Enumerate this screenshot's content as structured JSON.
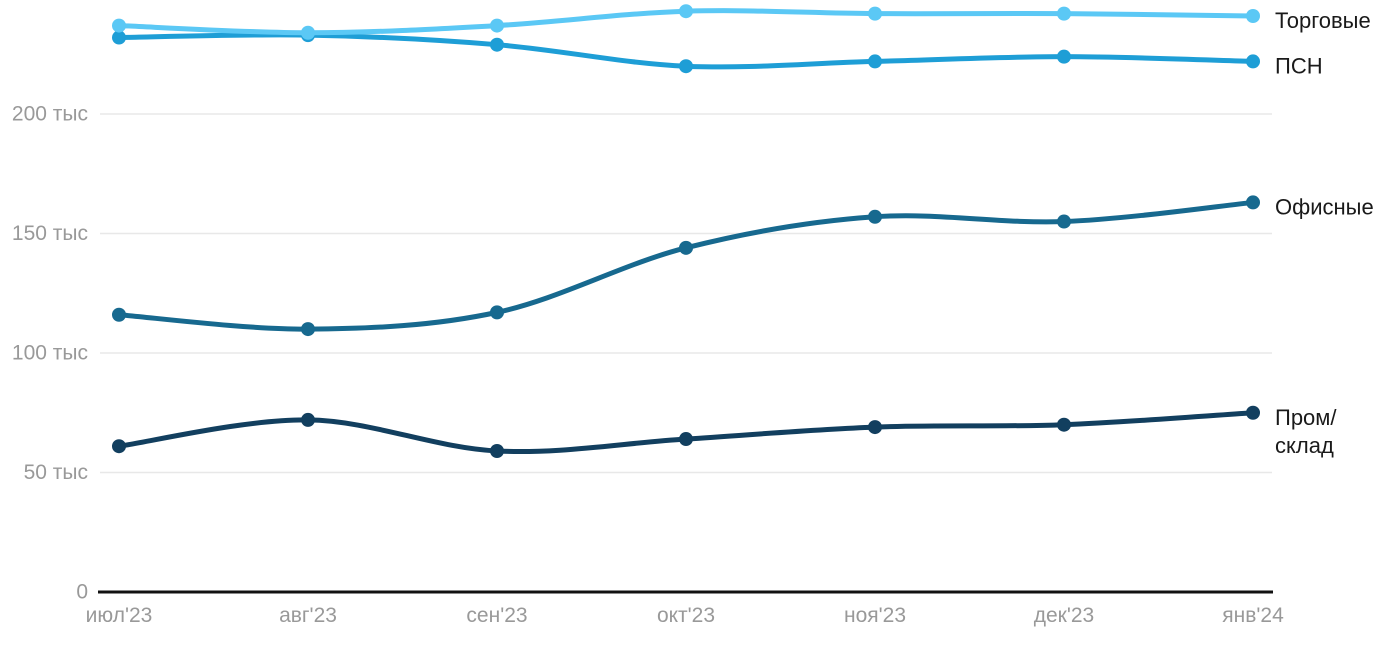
{
  "chart_data": {
    "type": "line",
    "title": "",
    "x_labels": [
      "июл'23",
      "авг'23",
      "сен'23",
      "окт'23",
      "ноя'23",
      "дек'23",
      "янв'24"
    ],
    "y_ticks": [
      {
        "value": 0,
        "label": "0"
      },
      {
        "value": 50,
        "label": "50 тыс"
      },
      {
        "value": 100,
        "label": "100 тыс"
      },
      {
        "value": 150,
        "label": "150 тыс"
      },
      {
        "value": 200,
        "label": "200 тыс"
      }
    ],
    "ylim": [
      0,
      248
    ],
    "grid": true,
    "legend_position": "right-of-line-end",
    "series": [
      {
        "key": "torgovye",
        "name": "Торговые",
        "color": "#5bc8f5",
        "values": [
          237,
          234,
          237,
          243,
          242,
          242,
          241
        ]
      },
      {
        "key": "psn",
        "name": "ПСН",
        "color": "#1e9ed6",
        "values": [
          232,
          233,
          229,
          220,
          222,
          224,
          222
        ]
      },
      {
        "key": "ofisnye",
        "name": "Офисные",
        "color": "#17698f",
        "values": [
          116,
          110,
          117,
          144,
          157,
          155,
          163
        ]
      },
      {
        "key": "prom-sklad",
        "name": "Пром/склад",
        "color": "#123f5f",
        "legend_lines": [
          "Пром/",
          "склад"
        ],
        "values": [
          61,
          72,
          59,
          64,
          69,
          70,
          75
        ]
      }
    ],
    "colors": {
      "grid": "#e8e8e8",
      "axis": "#111111",
      "tick_label": "#999999",
      "legend_label": "#1a1a1a"
    }
  }
}
